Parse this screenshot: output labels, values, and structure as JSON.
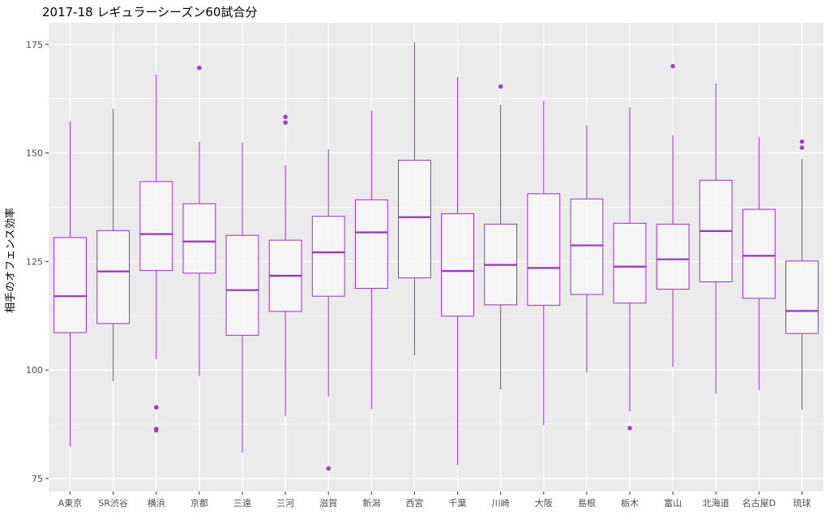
{
  "chart_data": {
    "type": "boxplot",
    "title": "2017-18 レギュラーシーズン60試合分",
    "xlabel": "",
    "ylabel": "相手のオフェンス効率",
    "ylim": [
      72,
      180
    ],
    "yticks": [
      75,
      100,
      125,
      150,
      175
    ],
    "grid": true,
    "legend": "none",
    "colors": {
      "panel": "#ebebeb",
      "grid": "#ffffff",
      "box_stroke": "#9b30c8",
      "box_fill": "#f7f7f7",
      "outlier": "#a23fd0"
    },
    "categories": [
      "A東京",
      "SR渋谷",
      "横浜",
      "京都",
      "三遠",
      "三河",
      "滋賀",
      "新潟",
      "西宮",
      "千葉",
      "川崎",
      "大阪",
      "島根",
      "栃木",
      "富山",
      "北海道",
      "名古屋D",
      "琉球"
    ],
    "boxes": [
      {
        "min": 82.3,
        "q1": 108.6,
        "median": 117.0,
        "q3": 130.5,
        "max": 157.3,
        "outliers": []
      },
      {
        "min": 97.4,
        "q1": 110.7,
        "median": 122.7,
        "q3": 132.1,
        "max": 160.2,
        "outliers": []
      },
      {
        "min": 102.5,
        "q1": 122.9,
        "median": 131.3,
        "q3": 143.4,
        "max": 168.1,
        "outliers": [
          91.4,
          86.4,
          86.1
        ]
      },
      {
        "min": 98.6,
        "q1": 122.3,
        "median": 129.6,
        "q3": 138.3,
        "max": 152.6,
        "outliers": [
          169.6
        ]
      },
      {
        "min": 81.0,
        "q1": 108.0,
        "median": 118.4,
        "q3": 131.0,
        "max": 152.4,
        "outliers": []
      },
      {
        "min": 89.4,
        "q1": 113.5,
        "median": 121.7,
        "q3": 129.9,
        "max": 147.2,
        "outliers": [
          157.0,
          158.3
        ]
      },
      {
        "min": 93.9,
        "q1": 117.0,
        "median": 127.1,
        "q3": 135.4,
        "max": 150.8,
        "outliers": [
          77.3
        ]
      },
      {
        "min": 91.0,
        "q1": 118.8,
        "median": 131.7,
        "q3": 139.2,
        "max": 159.8,
        "outliers": []
      },
      {
        "min": 103.4,
        "q1": 121.2,
        "median": 135.2,
        "q3": 148.3,
        "max": 175.5,
        "outliers": []
      },
      {
        "min": 78.1,
        "q1": 112.4,
        "median": 122.8,
        "q3": 136.0,
        "max": 167.5,
        "outliers": []
      },
      {
        "min": 95.5,
        "q1": 115.0,
        "median": 124.2,
        "q3": 133.6,
        "max": 161.1,
        "outliers": [
          165.3
        ]
      },
      {
        "min": 87.3,
        "q1": 114.9,
        "median": 123.5,
        "q3": 140.6,
        "max": 162.0,
        "outliers": []
      },
      {
        "min": 99.4,
        "q1": 117.4,
        "median": 128.7,
        "q3": 139.4,
        "max": 156.4,
        "outliers": []
      },
      {
        "min": 90.4,
        "q1": 115.4,
        "median": 123.8,
        "q3": 133.8,
        "max": 160.5,
        "outliers": [
          86.6
        ]
      },
      {
        "min": 100.7,
        "q1": 118.6,
        "median": 125.5,
        "q3": 133.6,
        "max": 154.0,
        "outliers": [
          170.0
        ]
      },
      {
        "min": 94.6,
        "q1": 120.3,
        "median": 132.0,
        "q3": 143.7,
        "max": 166.0,
        "outliers": []
      },
      {
        "min": 95.4,
        "q1": 116.5,
        "median": 126.3,
        "q3": 137.0,
        "max": 153.7,
        "outliers": []
      },
      {
        "min": 90.8,
        "q1": 108.4,
        "median": 113.6,
        "q3": 125.1,
        "max": 148.6,
        "outliers": [
          151.2,
          152.6
        ]
      }
    ]
  }
}
